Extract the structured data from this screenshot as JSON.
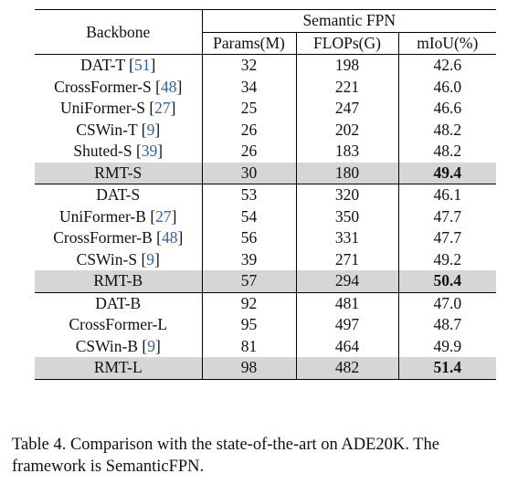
{
  "header": {
    "backbone": "Backbone",
    "framework": "Semantic FPN",
    "cols": [
      "Params(M)",
      "FLOPs(G)",
      "mIoU(%)"
    ]
  },
  "groups": [
    {
      "rows": [
        {
          "name": "DAT-T",
          "ref": "51",
          "params": "32",
          "flops": "198",
          "miou": "42.6"
        },
        {
          "name": "CrossFormer-S",
          "ref": "48",
          "params": "34",
          "flops": "221",
          "miou": "46.0"
        },
        {
          "name": "UniFormer-S",
          "ref": "27",
          "params": "25",
          "flops": "247",
          "miou": "46.6"
        },
        {
          "name": "CSWin-T",
          "ref": "9",
          "params": "26",
          "flops": "202",
          "miou": "48.2"
        },
        {
          "name": "Shuted-S",
          "ref": "39",
          "params": "26",
          "flops": "183",
          "miou": "48.2"
        },
        {
          "name": "RMT-S",
          "params": "30",
          "flops": "180",
          "miou": "49.4"
        }
      ]
    },
    {
      "rows": [
        {
          "name": "DAT-S",
          "params": "53",
          "flops": "320",
          "miou": "46.1"
        },
        {
          "name": "UniFormer-B",
          "ref": "27",
          "params": "54",
          "flops": "350",
          "miou": "47.7"
        },
        {
          "name": "CrossFormer-B",
          "ref": "48",
          "params": "56",
          "flops": "331",
          "miou": "47.7"
        },
        {
          "name": "CSWin-S",
          "ref": "9",
          "params": "39",
          "flops": "271",
          "miou": "49.2"
        },
        {
          "name": "RMT-B",
          "params": "57",
          "flops": "294",
          "miou": "50.4"
        }
      ]
    },
    {
      "rows": [
        {
          "name": "DAT-B",
          "params": "92",
          "flops": "481",
          "miou": "47.0"
        },
        {
          "name": "CrossFormer-L",
          "params": "95",
          "flops": "497",
          "miou": "48.7"
        },
        {
          "name": "CSWin-B",
          "ref": "9",
          "params": "81",
          "flops": "464",
          "miou": "49.9"
        },
        {
          "name": "RMT-L",
          "params": "98",
          "flops": "482",
          "miou": "51.4"
        }
      ]
    }
  ],
  "caption": "Table 4.  Comparison with the state-of-the-art on ADE20K. The framework is SemanticFPN."
}
